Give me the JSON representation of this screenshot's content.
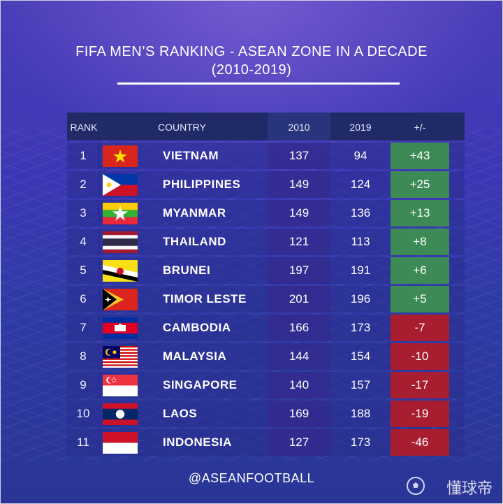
{
  "title_line1": "FIFA MEN’S RANKING - ASEAN ZONE IN A DECADE",
  "title_line2": "(2010-2019)",
  "headers": {
    "rank": "RANK",
    "country": "COUNTRY",
    "y2010": "2010",
    "y2019": "2019",
    "diff": "+/-"
  },
  "rows": [
    {
      "rank": "1",
      "country": "VIETNAM",
      "y2010": "137",
      "y2019": "94",
      "diff": "+43",
      "sign": "pos",
      "flag": "vietnam-flag"
    },
    {
      "rank": "2",
      "country": "PHILIPPINES",
      "y2010": "149",
      "y2019": "124",
      "diff": "+25",
      "sign": "pos",
      "flag": "philippines-flag"
    },
    {
      "rank": "3",
      "country": "MYANMAR",
      "y2010": "149",
      "y2019": "136",
      "diff": "+13",
      "sign": "pos",
      "flag": "myanmar-flag"
    },
    {
      "rank": "4",
      "country": "THAILAND",
      "y2010": "121",
      "y2019": "113",
      "diff": "+8",
      "sign": "pos",
      "flag": "thailand-flag"
    },
    {
      "rank": "5",
      "country": "BRUNEI",
      "y2010": "197",
      "y2019": "191",
      "diff": "+6",
      "sign": "pos",
      "flag": "brunei-flag"
    },
    {
      "rank": "6",
      "country": "TIMOR LESTE",
      "y2010": "201",
      "y2019": "196",
      "diff": "+5",
      "sign": "pos",
      "flag": "timor-leste-flag"
    },
    {
      "rank": "7",
      "country": "CAMBODIA",
      "y2010": "166",
      "y2019": "173",
      "diff": "-7",
      "sign": "neg",
      "flag": "cambodia-flag"
    },
    {
      "rank": "8",
      "country": "MALAYSIA",
      "y2010": "144",
      "y2019": "154",
      "diff": "-10",
      "sign": "neg",
      "flag": "malaysia-flag"
    },
    {
      "rank": "9",
      "country": "SINGAPORE",
      "y2010": "140",
      "y2019": "157",
      "diff": "-17",
      "sign": "neg",
      "flag": "singapore-flag"
    },
    {
      "rank": "10",
      "country": "LAOS",
      "y2010": "169",
      "y2019": "188",
      "diff": "-19",
      "sign": "neg",
      "flag": "laos-flag"
    },
    {
      "rank": "11",
      "country": "INDONESIA",
      "y2010": "127",
      "y2019": "173",
      "diff": "-46",
      "sign": "neg",
      "flag": "indonesia-flag"
    }
  ],
  "footer": "@ASEANFOOTBALL",
  "watermark": "懂球帝",
  "colors": {
    "positive": "#3e8a57",
    "negative": "#a81d2f",
    "header": "#1f2a66"
  }
}
